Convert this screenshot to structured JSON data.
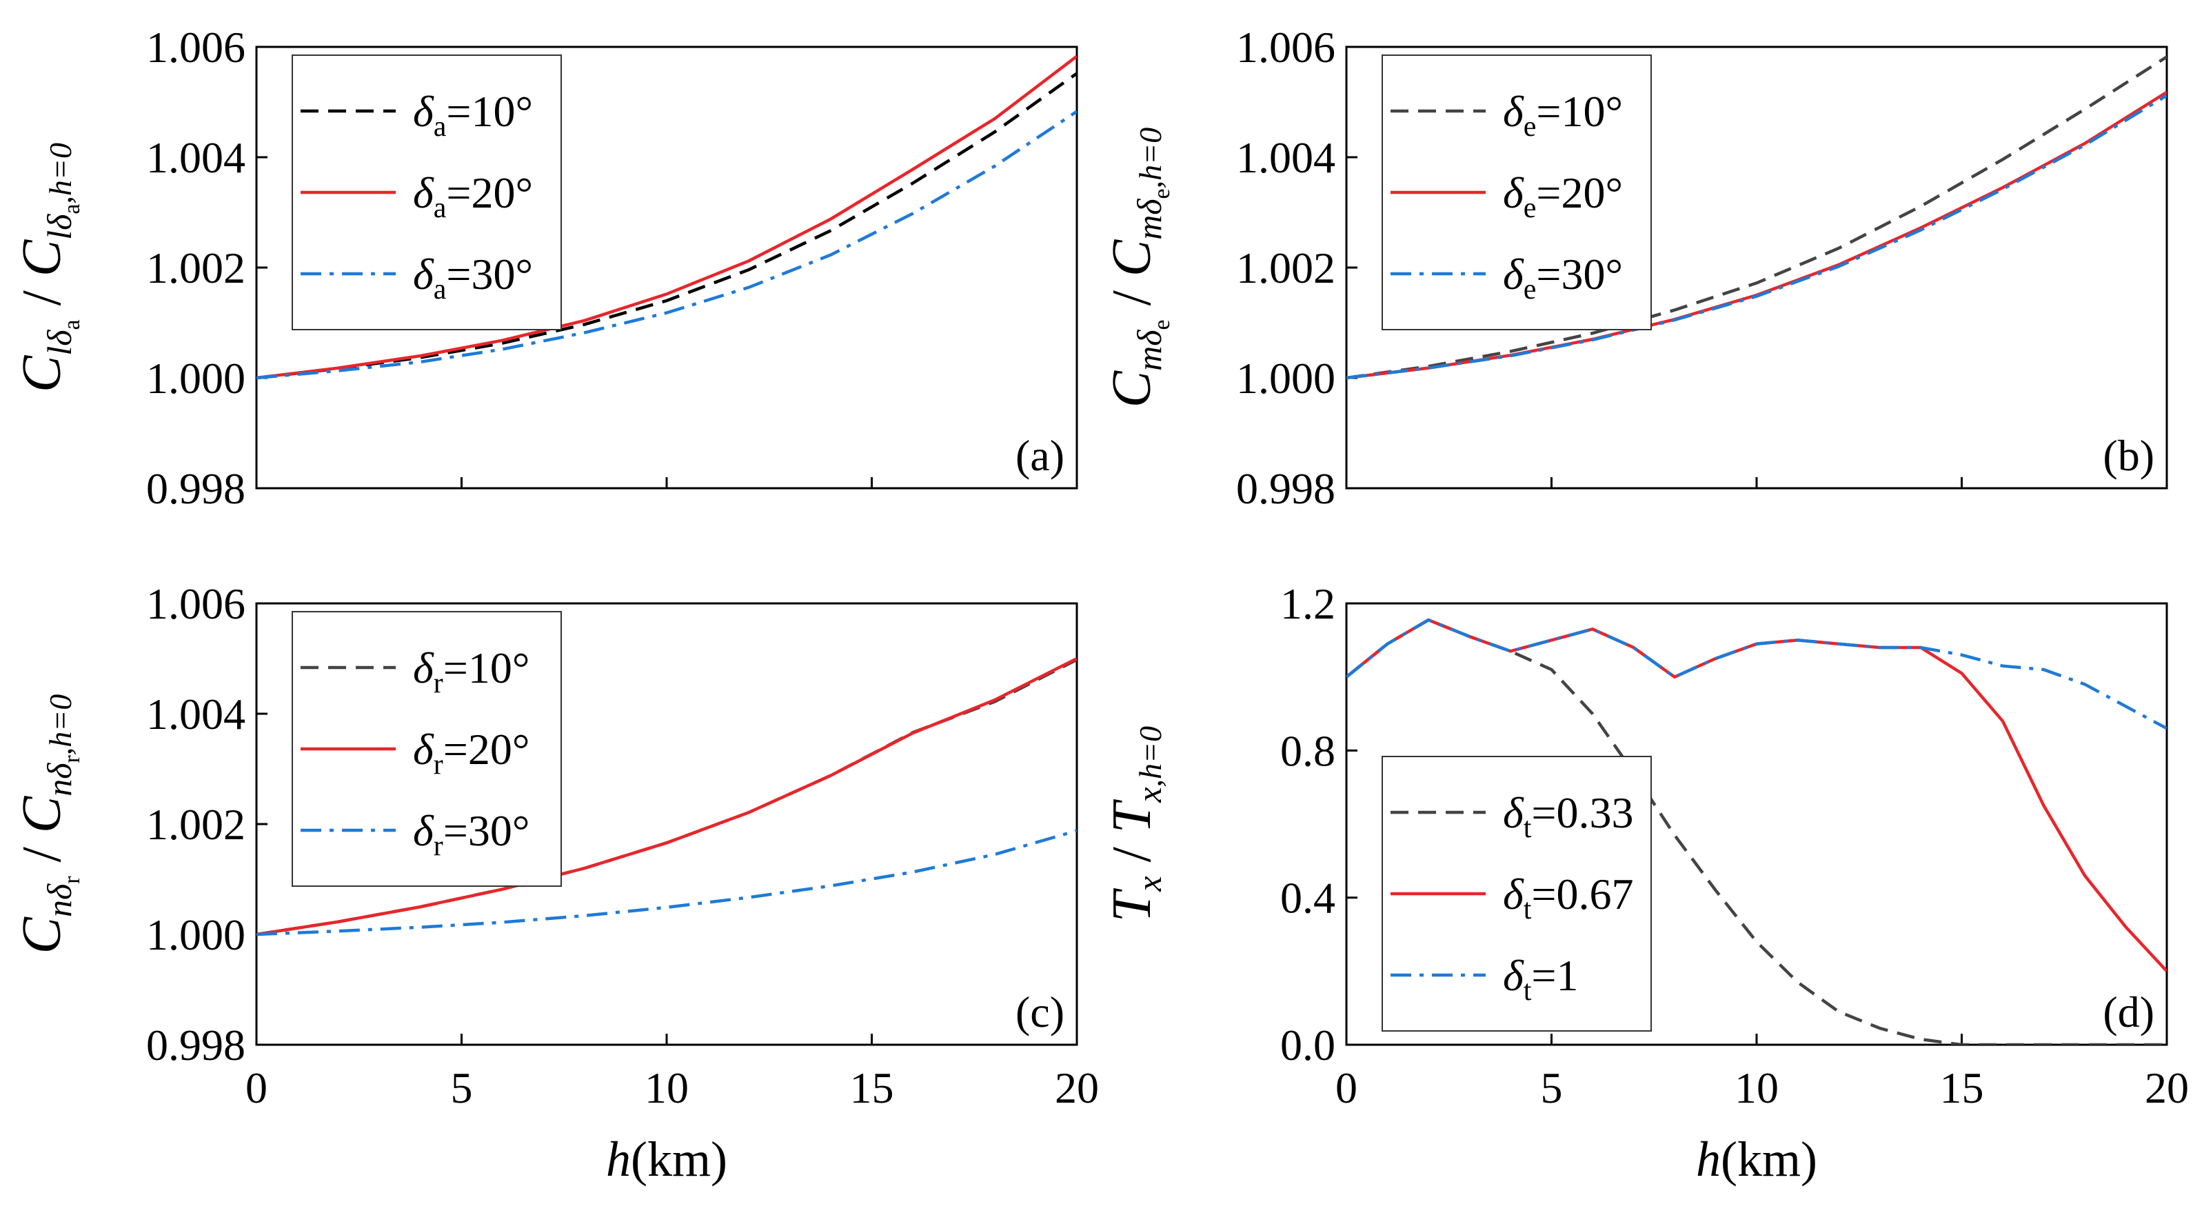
{
  "chart_data": [
    {
      "type": "line",
      "panel": "(a)",
      "ylabel": {
        "num": "C",
        "num_sub": "lδ",
        "num_subsub": "a",
        "den": "C",
        "den_sub": "lδ",
        "den_subsub": "a",
        "den_tail": ",h=0"
      },
      "xlim": [
        0,
        20
      ],
      "ylim": [
        0.998,
        1.006
      ],
      "xticks": [
        0,
        5,
        10,
        15,
        20
      ],
      "xtick_labels": [
        "0",
        "5",
        "10",
        "15",
        "20"
      ],
      "show_xtick_labels": false,
      "yticks": [
        0.998,
        1.0,
        1.002,
        1.004,
        1.006
      ],
      "ytick_labels": [
        "0.998",
        "1.000",
        "1.002",
        "1.004",
        "1.006"
      ],
      "legend": {
        "position": "top-left"
      },
      "series": [
        {
          "name": "δ",
          "sub": "a",
          "suffix": "=10°",
          "style": "dash",
          "color": "#000000",
          "x": [
            0,
            2,
            4,
            6,
            8,
            10,
            12,
            14,
            16,
            18,
            20
          ],
          "y": [
            1.0,
            1.00017,
            1.00037,
            1.00063,
            1.00097,
            1.0014,
            1.00196,
            1.00267,
            1.00353,
            1.00446,
            1.00552
          ]
        },
        {
          "name": "δ",
          "sub": "a",
          "suffix": "=20°",
          "style": "solid",
          "color": "#e8262b",
          "x": [
            0,
            2,
            4,
            6,
            8,
            10,
            12,
            14,
            16,
            18,
            20
          ],
          "y": [
            1.0,
            1.00018,
            1.0004,
            1.00068,
            1.00104,
            1.00152,
            1.00212,
            1.00288,
            1.00378,
            1.0047,
            1.00583
          ]
        },
        {
          "name": "δ",
          "sub": "a",
          "suffix": "=30°",
          "style": "dashdot",
          "color": "#1f7ad6",
          "x": [
            0,
            2,
            4,
            6,
            8,
            10,
            12,
            14,
            16,
            18,
            20
          ],
          "y": [
            1.0,
            1.00013,
            1.00029,
            1.00052,
            1.00082,
            1.00118,
            1.00164,
            1.00223,
            1.00298,
            1.00384,
            1.00483
          ]
        }
      ]
    },
    {
      "type": "line",
      "panel": "(b)",
      "ylabel": {
        "num": "C",
        "num_sub": "mδ",
        "num_subsub": "e",
        "den": "C",
        "den_sub": "mδ",
        "den_subsub": "e",
        "den_tail": ",h=0"
      },
      "xlim": [
        0,
        20
      ],
      "ylim": [
        0.998,
        1.006
      ],
      "xticks": [
        0,
        5,
        10,
        15,
        20
      ],
      "xtick_labels": [
        "0",
        "5",
        "10",
        "15",
        "20"
      ],
      "show_xtick_labels": false,
      "yticks": [
        0.998,
        1.0,
        1.002,
        1.004,
        1.006
      ],
      "ytick_labels": [
        "0.998",
        "1.000",
        "1.002",
        "1.004",
        "1.006"
      ],
      "legend": {
        "position": "top-left"
      },
      "series": [
        {
          "name": "δ",
          "sub": "e",
          "suffix": "=10°",
          "style": "dash",
          "color": "#444444",
          "x": [
            0,
            2,
            4,
            6,
            8,
            10,
            12,
            14,
            16,
            18,
            20
          ],
          "y": [
            1.0,
            1.00021,
            1.00048,
            1.00081,
            1.00123,
            1.00172,
            1.00235,
            1.00311,
            1.00396,
            1.00487,
            1.00582
          ]
        },
        {
          "name": "δ",
          "sub": "e",
          "suffix": "=20°",
          "style": "solid",
          "color": "#e8262b",
          "x": [
            0,
            2,
            4,
            6,
            8,
            10,
            12,
            14,
            16,
            18,
            20
          ],
          "y": [
            1.0,
            1.00018,
            1.00041,
            1.0007,
            1.00106,
            1.0015,
            1.00205,
            1.00272,
            1.00345,
            1.00425,
            1.00518
          ]
        },
        {
          "name": "δ",
          "sub": "e",
          "suffix": "=30°",
          "style": "dashdot",
          "color": "#1f7ad6",
          "x": [
            0,
            2,
            4,
            6,
            8,
            10,
            12,
            14,
            16,
            18,
            20
          ],
          "y": [
            1.0,
            1.00018,
            1.0004,
            1.00069,
            1.00105,
            1.00148,
            1.00202,
            1.00268,
            1.00342,
            1.00422,
            1.00512
          ]
        }
      ]
    },
    {
      "type": "line",
      "panel": "(c)",
      "ylabel": {
        "num": "C",
        "num_sub": "nδ",
        "num_subsub": "r",
        "den": "C",
        "den_sub": "nδ",
        "den_subsub": "r",
        "den_tail": ",h=0"
      },
      "xlim": [
        0,
        20
      ],
      "ylim": [
        0.998,
        1.006
      ],
      "xticks": [
        0,
        5,
        10,
        15,
        20
      ],
      "xtick_labels": [
        "0",
        "5",
        "10",
        "15",
        "20"
      ],
      "show_xtick_labels": true,
      "yticks": [
        0.998,
        1.0,
        1.002,
        1.004,
        1.006
      ],
      "ytick_labels": [
        "0.998",
        "1.000",
        "1.002",
        "1.004",
        "1.006"
      ],
      "xlabel": {
        "var": "h",
        "unit": "(km)"
      },
      "legend": {
        "position": "top-left"
      },
      "series": [
        {
          "name": "δ",
          "sub": "r",
          "suffix": "=10°",
          "style": "dash",
          "color": "#444444",
          "x": [
            0,
            2,
            4,
            6,
            8,
            10,
            12,
            14,
            16,
            18,
            20
          ],
          "y": [
            1.0,
            1.00023,
            1.0005,
            1.00082,
            1.0012,
            1.00166,
            1.00221,
            1.00288,
            1.00366,
            1.00422,
            1.00498
          ]
        },
        {
          "name": "δ",
          "sub": "r",
          "suffix": "=20°",
          "style": "solid",
          "color": "#e8262b",
          "x": [
            0,
            2,
            4,
            6,
            8,
            10,
            12,
            14,
            16,
            18,
            20
          ],
          "y": [
            1.0,
            1.00023,
            1.0005,
            1.00082,
            1.0012,
            1.00166,
            1.00221,
            1.00288,
            1.00365,
            1.00425,
            1.005
          ]
        },
        {
          "name": "δ",
          "sub": "r",
          "suffix": "=30°",
          "style": "dashdot",
          "color": "#1f7ad6",
          "x": [
            0,
            2,
            4,
            6,
            8,
            10,
            12,
            14,
            16,
            18,
            20
          ],
          "y": [
            1.0,
            1.00006,
            1.00013,
            1.00022,
            1.00034,
            1.00049,
            1.00067,
            1.00088,
            1.00113,
            1.00145,
            1.00188
          ]
        }
      ]
    },
    {
      "type": "line",
      "panel": "(d)",
      "ylabel": {
        "num": "T",
        "num_sub": "x",
        "den": "T",
        "den_sub": "x",
        "den_tail": ",h=0"
      },
      "xlim": [
        0,
        20
      ],
      "ylim": [
        0.0,
        1.2
      ],
      "xticks": [
        0,
        5,
        10,
        15,
        20
      ],
      "xtick_labels": [
        "0",
        "5",
        "10",
        "15",
        "20"
      ],
      "show_xtick_labels": true,
      "yticks": [
        0.0,
        0.4,
        0.8,
        1.2
      ],
      "ytick_labels": [
        "0.0",
        "0.4",
        "0.8",
        "1.2"
      ],
      "xlabel": {
        "var": "h",
        "unit": "(km)"
      },
      "legend": {
        "position": "bottom-left"
      },
      "series": [
        {
          "name": "δ",
          "sub": "t",
          "suffix": "=0.33",
          "style": "dash",
          "color": "#444444",
          "x": [
            0,
            1,
            2,
            3,
            4,
            5,
            6,
            7,
            8,
            9,
            10,
            11,
            12,
            13,
            14,
            15,
            16,
            17,
            18,
            19,
            20
          ],
          "y": [
            1.0,
            1.09,
            1.155,
            1.11,
            1.07,
            1.02,
            0.9,
            0.74,
            0.57,
            0.42,
            0.28,
            0.17,
            0.09,
            0.045,
            0.015,
            0.0,
            0.0,
            0.0,
            0.0,
            0.0,
            0.0
          ]
        },
        {
          "name": "δ",
          "sub": "t",
          "suffix": "=0.67",
          "style": "solid",
          "color": "#e8262b",
          "x": [
            0,
            1,
            2,
            3,
            4,
            5,
            6,
            7,
            8,
            9,
            10,
            11,
            12,
            13,
            14,
            15,
            16,
            17,
            18,
            19,
            20
          ],
          "y": [
            1.0,
            1.09,
            1.155,
            1.11,
            1.07,
            1.1,
            1.13,
            1.08,
            1.0,
            1.05,
            1.09,
            1.1,
            1.09,
            1.08,
            1.08,
            1.01,
            0.88,
            0.65,
            0.46,
            0.32,
            0.2
          ]
        },
        {
          "name": "δ",
          "sub": "t",
          "suffix": "=1",
          "style": "dashdot",
          "color": "#1f7ad6",
          "x": [
            0,
            1,
            2,
            3,
            4,
            5,
            6,
            7,
            8,
            9,
            10,
            11,
            12,
            13,
            14,
            15,
            16,
            17,
            18,
            19,
            20
          ],
          "y": [
            1.0,
            1.09,
            1.155,
            1.11,
            1.07,
            1.1,
            1.13,
            1.08,
            1.0,
            1.05,
            1.09,
            1.1,
            1.09,
            1.08,
            1.08,
            1.06,
            1.03,
            1.02,
            0.98,
            0.92,
            0.86
          ]
        }
      ]
    }
  ]
}
